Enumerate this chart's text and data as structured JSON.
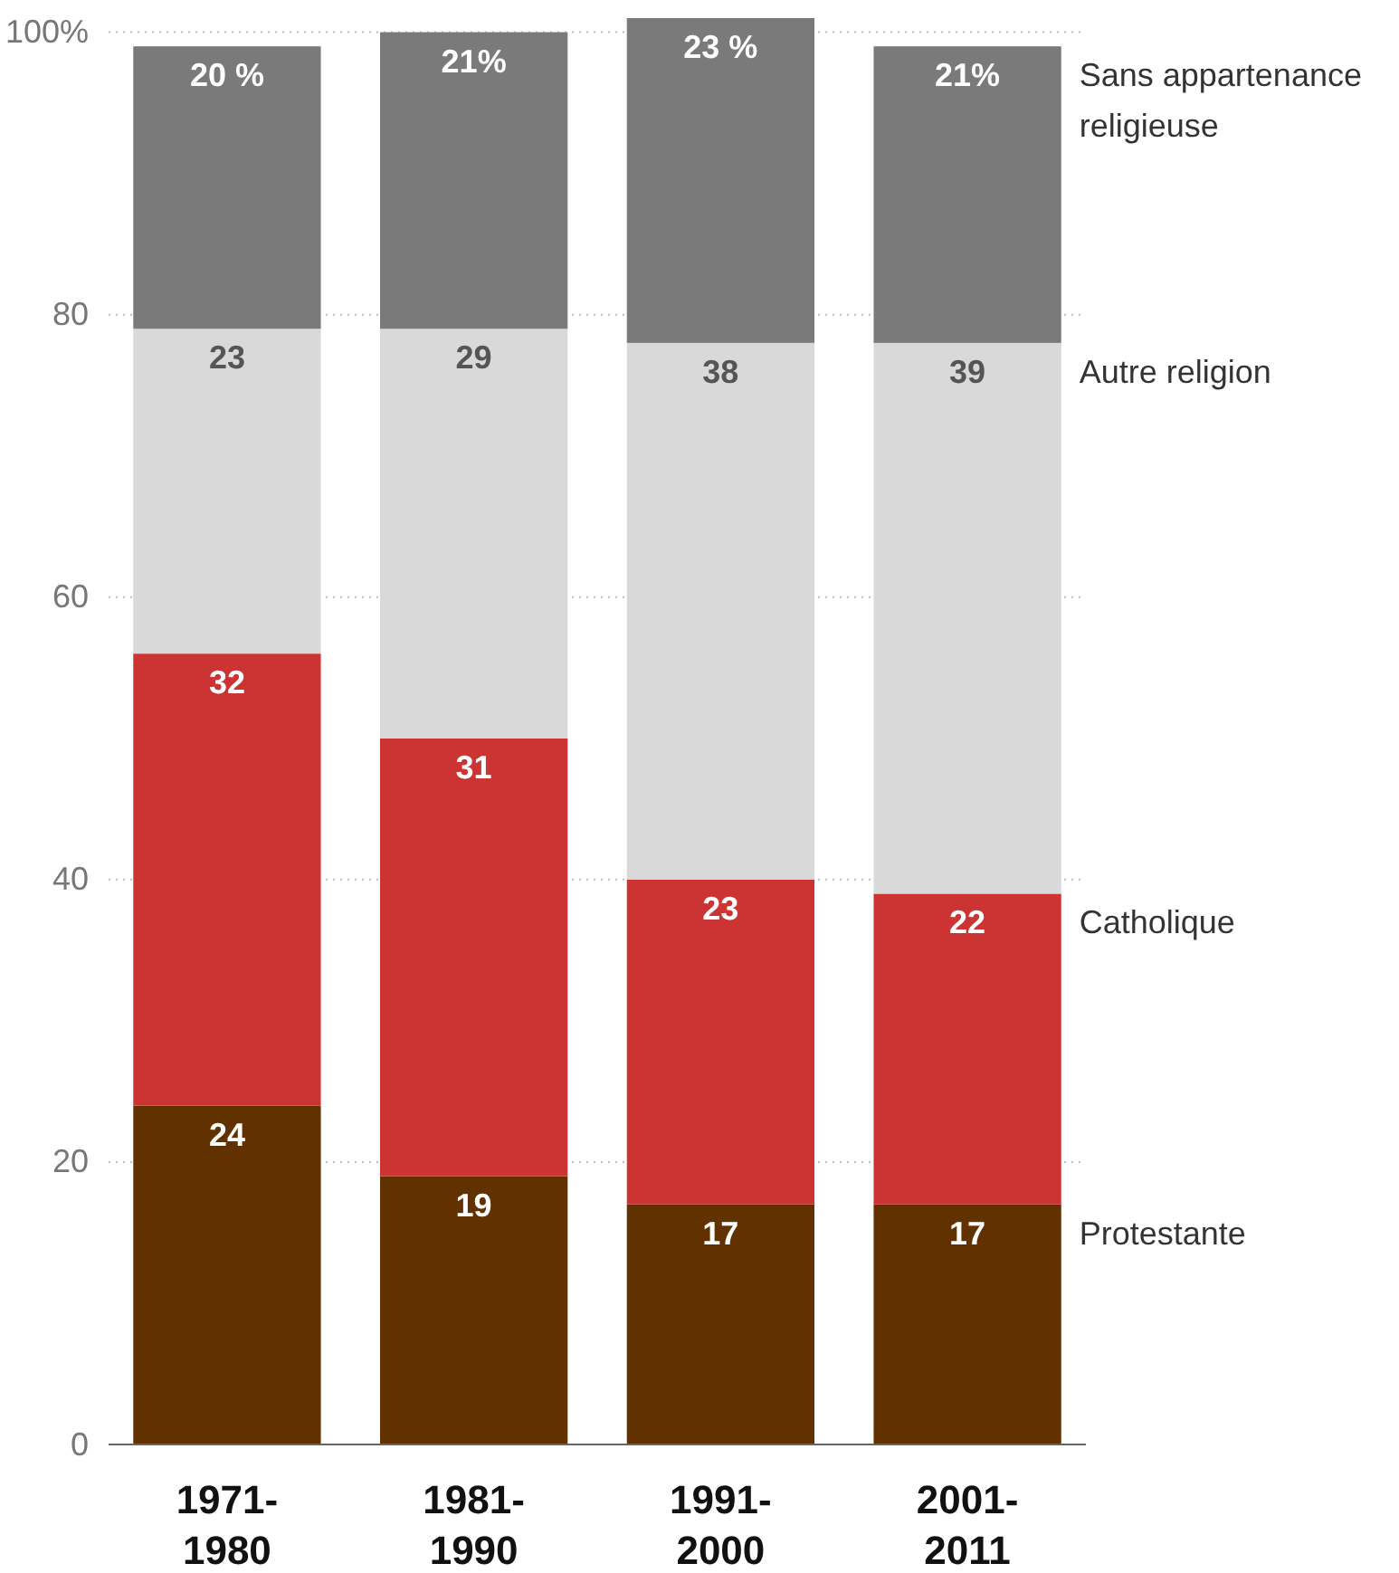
{
  "chart_data": {
    "type": "bar",
    "stacked": true,
    "categories": [
      "1971-\n1980",
      "1981-\n1990",
      "1991-\n2000",
      "2001-\n2011"
    ],
    "series": [
      {
        "name": "Protestante",
        "color": "#623100",
        "values": [
          24,
          19,
          17,
          17
        ],
        "value_labels": [
          "24",
          "19",
          "17",
          "17"
        ]
      },
      {
        "name": "Catholique",
        "color": "#cc3333",
        "values": [
          32,
          31,
          23,
          22
        ],
        "value_labels": [
          "32",
          "31",
          "23",
          "22"
        ]
      },
      {
        "name": "Autre religion",
        "color": "#d9d9d9",
        "values": [
          23,
          29,
          38,
          39
        ],
        "value_labels": [
          "23",
          "29",
          "38",
          "39"
        ]
      },
      {
        "name": "Sans appartenance religieuse",
        "color": "#7a7a7a",
        "values": [
          20,
          21,
          23,
          21
        ],
        "value_labels": [
          "20 %",
          "21%",
          "23 %",
          "21%"
        ]
      }
    ],
    "ylim": [
      0,
      101
    ],
    "yticks": [
      0,
      20,
      40,
      60,
      80,
      {
        "value": 100,
        "label": "100%"
      }
    ],
    "grid": "y"
  }
}
